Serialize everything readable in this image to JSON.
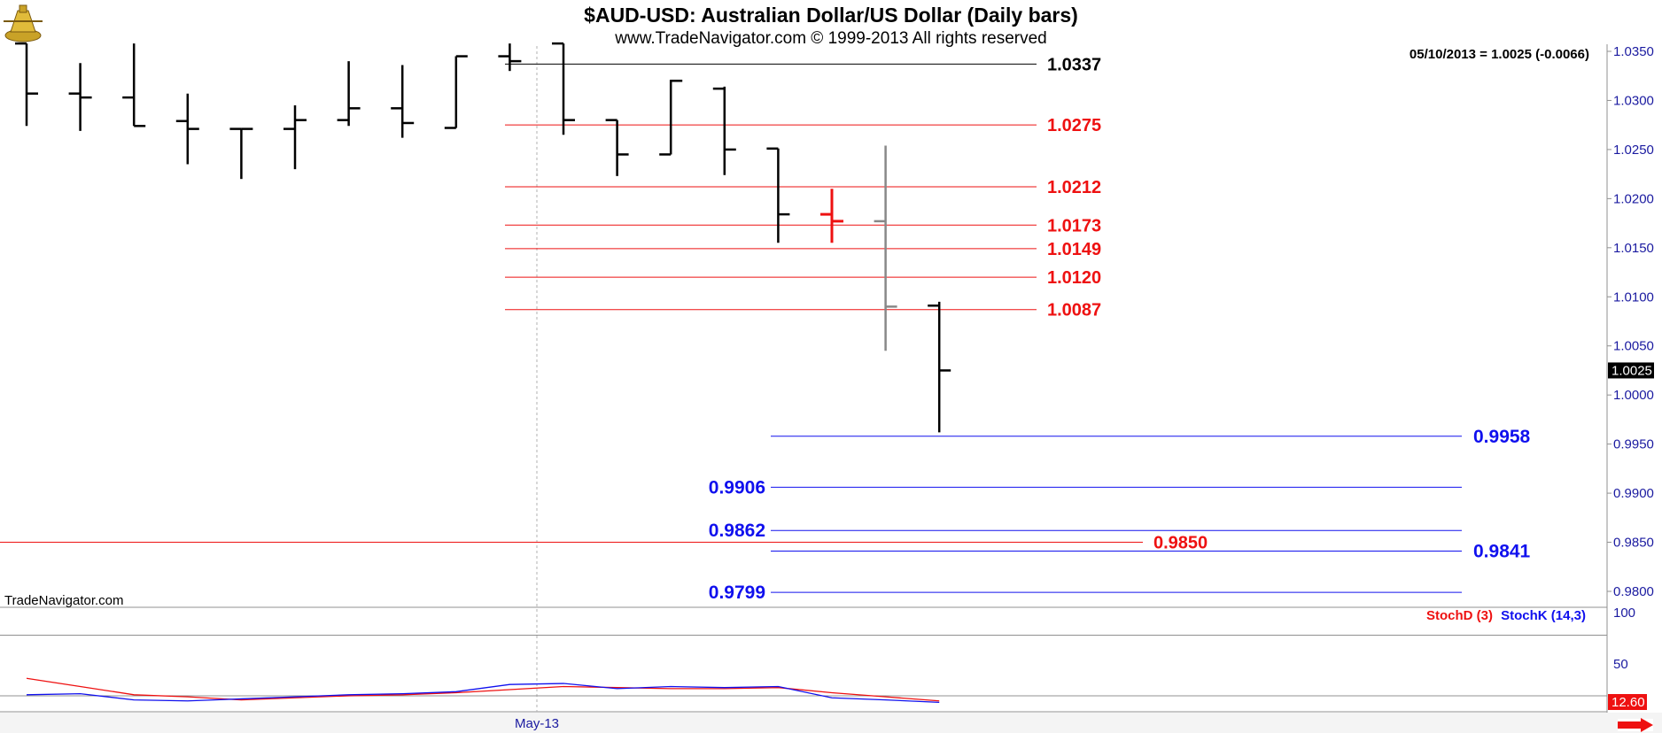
{
  "header": {
    "title": "$AUD-USD:  Australian Dollar/US Dollar  (Daily bars)",
    "subtitle": "www.TradeNavigator.com © 1999-2013 All rights reserved",
    "last_quote": "05/10/2013 = 1.0025 (-0.0066)",
    "watermark": "TradeNavigator.com"
  },
  "colors": {
    "bar": "#000000",
    "bar_red": "#ee1111",
    "bar_gray": "#888888",
    "level_red": "#ee1111",
    "level_blue": "#1010ee",
    "stoch_d": "#ee1111",
    "stoch_k": "#1010ee",
    "axis_text": "#1a1aa0"
  },
  "chart_data": {
    "type": "ohlc-bar",
    "price_axis": {
      "ylim": [
        0.978,
        1.0358
      ],
      "ticks": [
        1.035,
        1.03,
        1.025,
        1.02,
        1.015,
        1.01,
        1.005,
        1.0,
        0.995,
        0.99,
        0.985,
        0.98
      ],
      "tick_labels": [
        "1.0350",
        "1.0300",
        "1.0250",
        "1.0200",
        "1.0150",
        "1.0100",
        "1.0050",
        "1.0000",
        "0.9950",
        "0.9900",
        "0.9850",
        "0.9800"
      ],
      "current_value": 1.0025,
      "current_label": "1.0025"
    },
    "x_axis": {
      "labels": [
        {
          "text": "May-13",
          "bar_index": 10
        }
      ]
    },
    "bars": [
      {
        "open": 1.0358,
        "high": 1.0358,
        "low": 1.0274,
        "close": 1.0307,
        "color": "black"
      },
      {
        "open": 1.0307,
        "high": 1.0338,
        "low": 1.0269,
        "close": 1.0303,
        "color": "black"
      },
      {
        "open": 1.0303,
        "high": 1.0358,
        "low": 1.0274,
        "close": 1.0274,
        "color": "black"
      },
      {
        "open": 1.0279,
        "high": 1.0307,
        "low": 1.0235,
        "close": 1.0271,
        "color": "black"
      },
      {
        "open": 1.0271,
        "high": 1.0271,
        "low": 1.022,
        "close": 1.0271,
        "color": "black"
      },
      {
        "open": 1.0271,
        "high": 1.0295,
        "low": 1.023,
        "close": 1.028,
        "color": "black"
      },
      {
        "open": 1.028,
        "high": 1.034,
        "low": 1.0274,
        "close": 1.0292,
        "color": "black"
      },
      {
        "open": 1.0292,
        "high": 1.0336,
        "low": 1.0262,
        "close": 1.0277,
        "color": "black"
      },
      {
        "open": 1.0272,
        "high": 1.0345,
        "low": 1.0272,
        "close": 1.0345,
        "color": "black"
      },
      {
        "open": 1.0345,
        "high": 1.0358,
        "low": 1.033,
        "close": 1.034,
        "color": "black"
      },
      {
        "open": 1.0358,
        "high": 1.0358,
        "low": 1.0265,
        "close": 1.028,
        "color": "black"
      },
      {
        "open": 1.028,
        "high": 1.028,
        "low": 1.0223,
        "close": 1.0245,
        "color": "black"
      },
      {
        "open": 1.0245,
        "high": 1.0321,
        "low": 1.0245,
        "close": 1.032,
        "color": "black"
      },
      {
        "open": 1.0312,
        "high": 1.0314,
        "low": 1.0224,
        "close": 1.025,
        "color": "black"
      },
      {
        "open": 1.0251,
        "high": 1.0251,
        "low": 1.0155,
        "close": 1.0184,
        "color": "black"
      },
      {
        "open": 1.0184,
        "high": 1.021,
        "low": 1.0155,
        "close": 1.0177,
        "color": "red"
      },
      {
        "open": 1.0177,
        "high": 1.0254,
        "low": 1.0045,
        "close": 1.009,
        "color": "gray"
      },
      {
        "open": 1.0091,
        "high": 1.0095,
        "low": 0.9962,
        "close": 1.0025,
        "color": "black"
      }
    ],
    "resistance_levels": [
      {
        "value": 1.0337,
        "label": "1.0337",
        "color": "black"
      },
      {
        "value": 1.0275,
        "label": "1.0275",
        "color": "red"
      },
      {
        "value": 1.0212,
        "label": "1.0212",
        "color": "red"
      },
      {
        "value": 1.0173,
        "label": "1.0173",
        "color": "red"
      },
      {
        "value": 1.0149,
        "label": "1.0149",
        "color": "red"
      },
      {
        "value": 1.012,
        "label": "1.0120",
        "color": "red"
      },
      {
        "value": 1.0087,
        "label": "1.0087",
        "color": "red"
      }
    ],
    "support_levels": [
      {
        "value": 0.9958,
        "label": "0.9958",
        "label_side": "right"
      },
      {
        "value": 0.9906,
        "label": "0.9906",
        "label_side": "left"
      },
      {
        "value": 0.9862,
        "label": "0.9862",
        "label_side": "left"
      },
      {
        "value": 0.9841,
        "label": "0.9841",
        "label_side": "right"
      },
      {
        "value": 0.9799,
        "label": "0.9799",
        "label_side": "left"
      }
    ],
    "long_level": {
      "value": 0.985,
      "label": "0.9850",
      "color": "red"
    },
    "stochastic": {
      "ylim": [
        0,
        100
      ],
      "ticks": [
        100,
        50
      ],
      "tick_labels": [
        "100",
        "50"
      ],
      "reference_line": 78,
      "legend": {
        "d": "StochD (3)",
        "k": "StochK (14,3)"
      },
      "current_label": "12.60",
      "d_values": [
        36,
        28,
        20,
        18,
        15,
        17,
        19,
        20,
        22,
        25,
        28,
        27,
        26,
        26,
        27,
        22,
        18,
        14
      ],
      "k_values": [
        20,
        21,
        15,
        14,
        16,
        18,
        20,
        21,
        23,
        30,
        31,
        26,
        28,
        27,
        28,
        17,
        15,
        12.6
      ]
    }
  }
}
